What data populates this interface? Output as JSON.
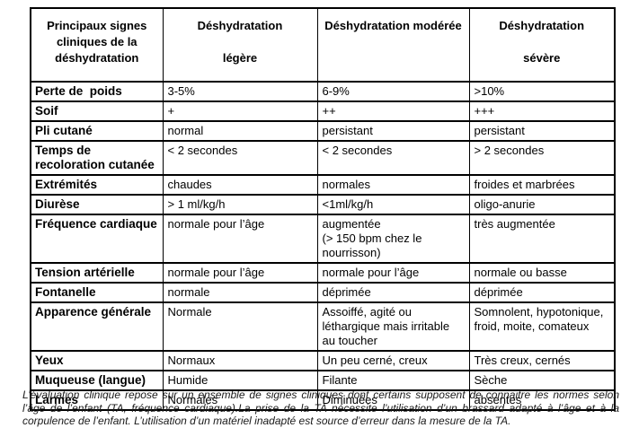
{
  "table": {
    "headers": [
      "Principaux signes\ncliniques de la\ndéshydratation",
      "Déshydratation\n\nlégère",
      "Déshydratation modérée",
      "Déshydratation\n\nsévère"
    ],
    "rows": [
      {
        "label": "Perte de  poids",
        "cells": [
          "3-5%",
          "6-9%",
          ">10%"
        ]
      },
      {
        "label": "Soif",
        "cells": [
          "+",
          "++",
          "+++"
        ]
      },
      {
        "label": "Pli cutané",
        "cells": [
          "normal",
          "persistant",
          "persistant"
        ]
      },
      {
        "label": "Temps de recoloration cutanée",
        "cells": [
          "< 2 secondes",
          "< 2 secondes",
          "> 2 secondes"
        ]
      },
      {
        "label": "Extrémités",
        "cells": [
          "chaudes",
          "normales",
          "froides et marbrées"
        ]
      },
      {
        "label": "Diurèse",
        "cells": [
          "> 1 ml/kg/h",
          "<1ml/kg/h",
          "oligo-anurie"
        ]
      },
      {
        "label": "Fréquence cardiaque",
        "cells": [
          "normale pour l’âge",
          "augmentée\n(> 150 bpm chez le\nnourrisson)",
          "très augmentée"
        ]
      },
      {
        "label": "Tension artérielle",
        "cells": [
          "normale pour l’âge",
          "normale pour l’âge",
          "normale ou basse"
        ]
      },
      {
        "label": "Fontanelle",
        "cells": [
          "normale",
          "déprimée",
          "déprimée"
        ]
      },
      {
        "label": "Apparence générale",
        "cells": [
          "Normale",
          "Assoiffé, agité ou léthargique mais irritable au toucher",
          "Somnolent, hypotonique, froid, moite, comateux"
        ]
      },
      {
        "label": "Yeux",
        "cells": [
          "Normaux",
          "Un peu cerné, creux",
          "Très creux, cernés"
        ]
      },
      {
        "label": "Muqueuse (langue)",
        "cells": [
          "Humide",
          "Filante",
          "Sèche"
        ]
      },
      {
        "label": "Larmes",
        "cells": [
          "Normales",
          "Diminuées",
          "absentes"
        ]
      }
    ]
  },
  "footer": {
    "note": "L’évaluation clinique repose sur un ensemble de signes cliniques dont certains supposent de connaitre les normes selon l’âge de l’enfant (TA, fréquence cardiaque).La prise de la TA nécessite l’utilisation d’un brassard adapté à l’âge et à la corpulence de l’enfant. L’utilisation d’un matériel inadapté est source d’erreur dans la mesure de la TA."
  },
  "colors": {
    "border": "#000000",
    "text": "#000000",
    "background": "#ffffff"
  }
}
